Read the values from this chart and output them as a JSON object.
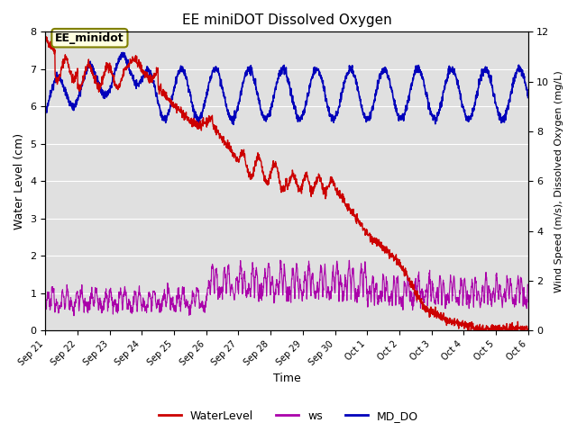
{
  "title": "EE miniDOT Dissolved Oxygen",
  "xlabel": "Time",
  "ylabel_left": "Water Level (cm)",
  "ylabel_right": "Wind Speed (m/s), Dissolved Oxygen (mg/L)",
  "annotation_text": "EE_minidot",
  "ylim_left": [
    0.0,
    8.0
  ],
  "ylim_right": [
    0,
    12
  ],
  "yticks_left": [
    0.0,
    1.0,
    2.0,
    3.0,
    4.0,
    5.0,
    6.0,
    7.0,
    8.0
  ],
  "yticks_right": [
    0,
    2,
    4,
    6,
    8,
    10,
    12
  ],
  "color_wl": "#cc0000",
  "color_ws": "#aa00aa",
  "color_do": "#0000bb",
  "background_color": "#e0e0e0",
  "legend_labels": [
    "WaterLevel",
    "ws",
    "MD_DO"
  ],
  "legend_colors": [
    "#cc0000",
    "#aa00aa",
    "#0000bb"
  ],
  "n_points": 2000,
  "seed": 42
}
